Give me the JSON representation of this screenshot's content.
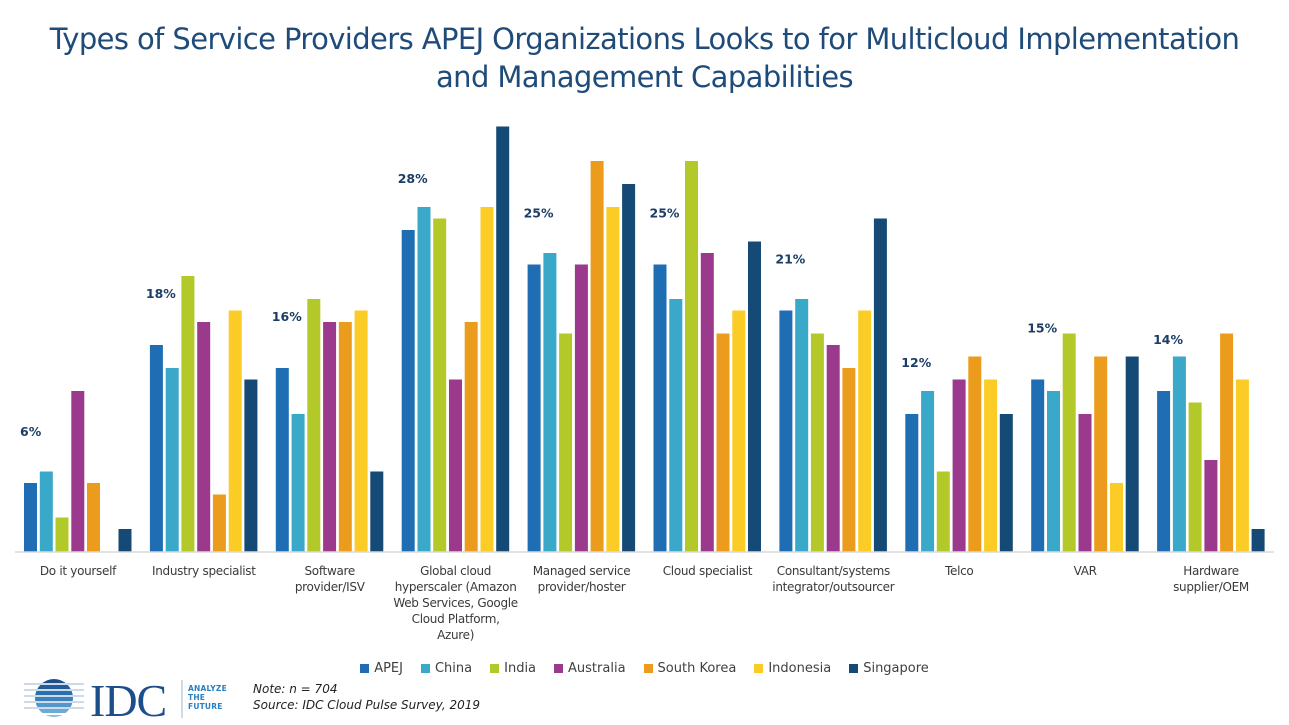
{
  "chart_data": {
    "type": "bar",
    "title": "Types of Service Providers APEJ Organizations Looks to for Multicloud Implementation and Management Capabilities",
    "title_lines": [
      "Types of Service Providers APEJ Organizations Looks to for Multicloud Implementation",
      "and Management Capabilities"
    ],
    "xlabel": "",
    "ylabel": "",
    "ylim": [
      0,
      40
    ],
    "grid": false,
    "legend_position": "bottom",
    "unit": "%",
    "categories": [
      "Do it yourself",
      "Industry specialist",
      "Software provider/ISV",
      "Global cloud hyperscaler (Amazon Web Services, Google Cloud Platform, Azure)",
      "Managed service provider/hoster",
      "Cloud specialist",
      "Consultant/systems integrator/outsourcer",
      "Telco",
      "VAR",
      "Hardware supplier/OEM"
    ],
    "category_label_lines": [
      [
        "Do it yourself"
      ],
      [
        "Industry specialist"
      ],
      [
        "Software",
        "provider/ISV"
      ],
      [
        "Global cloud",
        "hyperscaler (Amazon",
        "Web Services, Google",
        "Cloud Platform,",
        "Azure)"
      ],
      [
        "Managed service",
        "provider/hoster"
      ],
      [
        "Cloud specialist"
      ],
      [
        "Consultant/systems",
        "integrator/outsourcer"
      ],
      [
        "Telco"
      ],
      [
        "VAR"
      ],
      [
        "Hardware",
        "supplier/OEM"
      ]
    ],
    "series": [
      {
        "name": "APEJ",
        "color": "#1f6eb4",
        "values": [
          6,
          18,
          16,
          28,
          25,
          25,
          21,
          12,
          15,
          14
        ]
      },
      {
        "name": "China",
        "color": "#39a8c9",
        "values": [
          7,
          16,
          12,
          30,
          26,
          22,
          22,
          14,
          14,
          17
        ]
      },
      {
        "name": "India",
        "color": "#b3c92a",
        "values": [
          3,
          24,
          22,
          29,
          19,
          34,
          19,
          7,
          19,
          13
        ]
      },
      {
        "name": "Australia",
        "color": "#9b3a8c",
        "values": [
          14,
          20,
          20,
          15,
          25,
          26,
          18,
          15,
          12,
          8
        ]
      },
      {
        "name": "South Korea",
        "color": "#eb9c1c",
        "values": [
          6,
          5,
          20,
          20,
          34,
          19,
          16,
          17,
          17,
          19
        ]
      },
      {
        "name": "Indonesia",
        "color": "#fbcb26",
        "values": [
          0,
          21,
          21,
          30,
          30,
          21,
          21,
          15,
          6,
          15
        ]
      },
      {
        "name": "Singapore",
        "color": "#144a75",
        "values": [
          2,
          15,
          7,
          37,
          32,
          27,
          29,
          12,
          17,
          2
        ]
      }
    ],
    "data_labels": {
      "series": "APEJ",
      "values": [
        "6%",
        "18%",
        "16%",
        "28%",
        "25%",
        "25%",
        "21%",
        "12%",
        "15%",
        "14%"
      ]
    }
  },
  "footer": {
    "note": "Note: n = 704",
    "source": "Source: IDC Cloud Pulse Survey, 2019"
  },
  "logo": {
    "brand": "IDC",
    "tagline": [
      "ANALYZE",
      "THE",
      "FUTURE"
    ],
    "color": "#1c4f8a"
  },
  "axis_color": "#d9d9d9",
  "label_color": "#1b3d66",
  "title_color": "#1f4b7a"
}
